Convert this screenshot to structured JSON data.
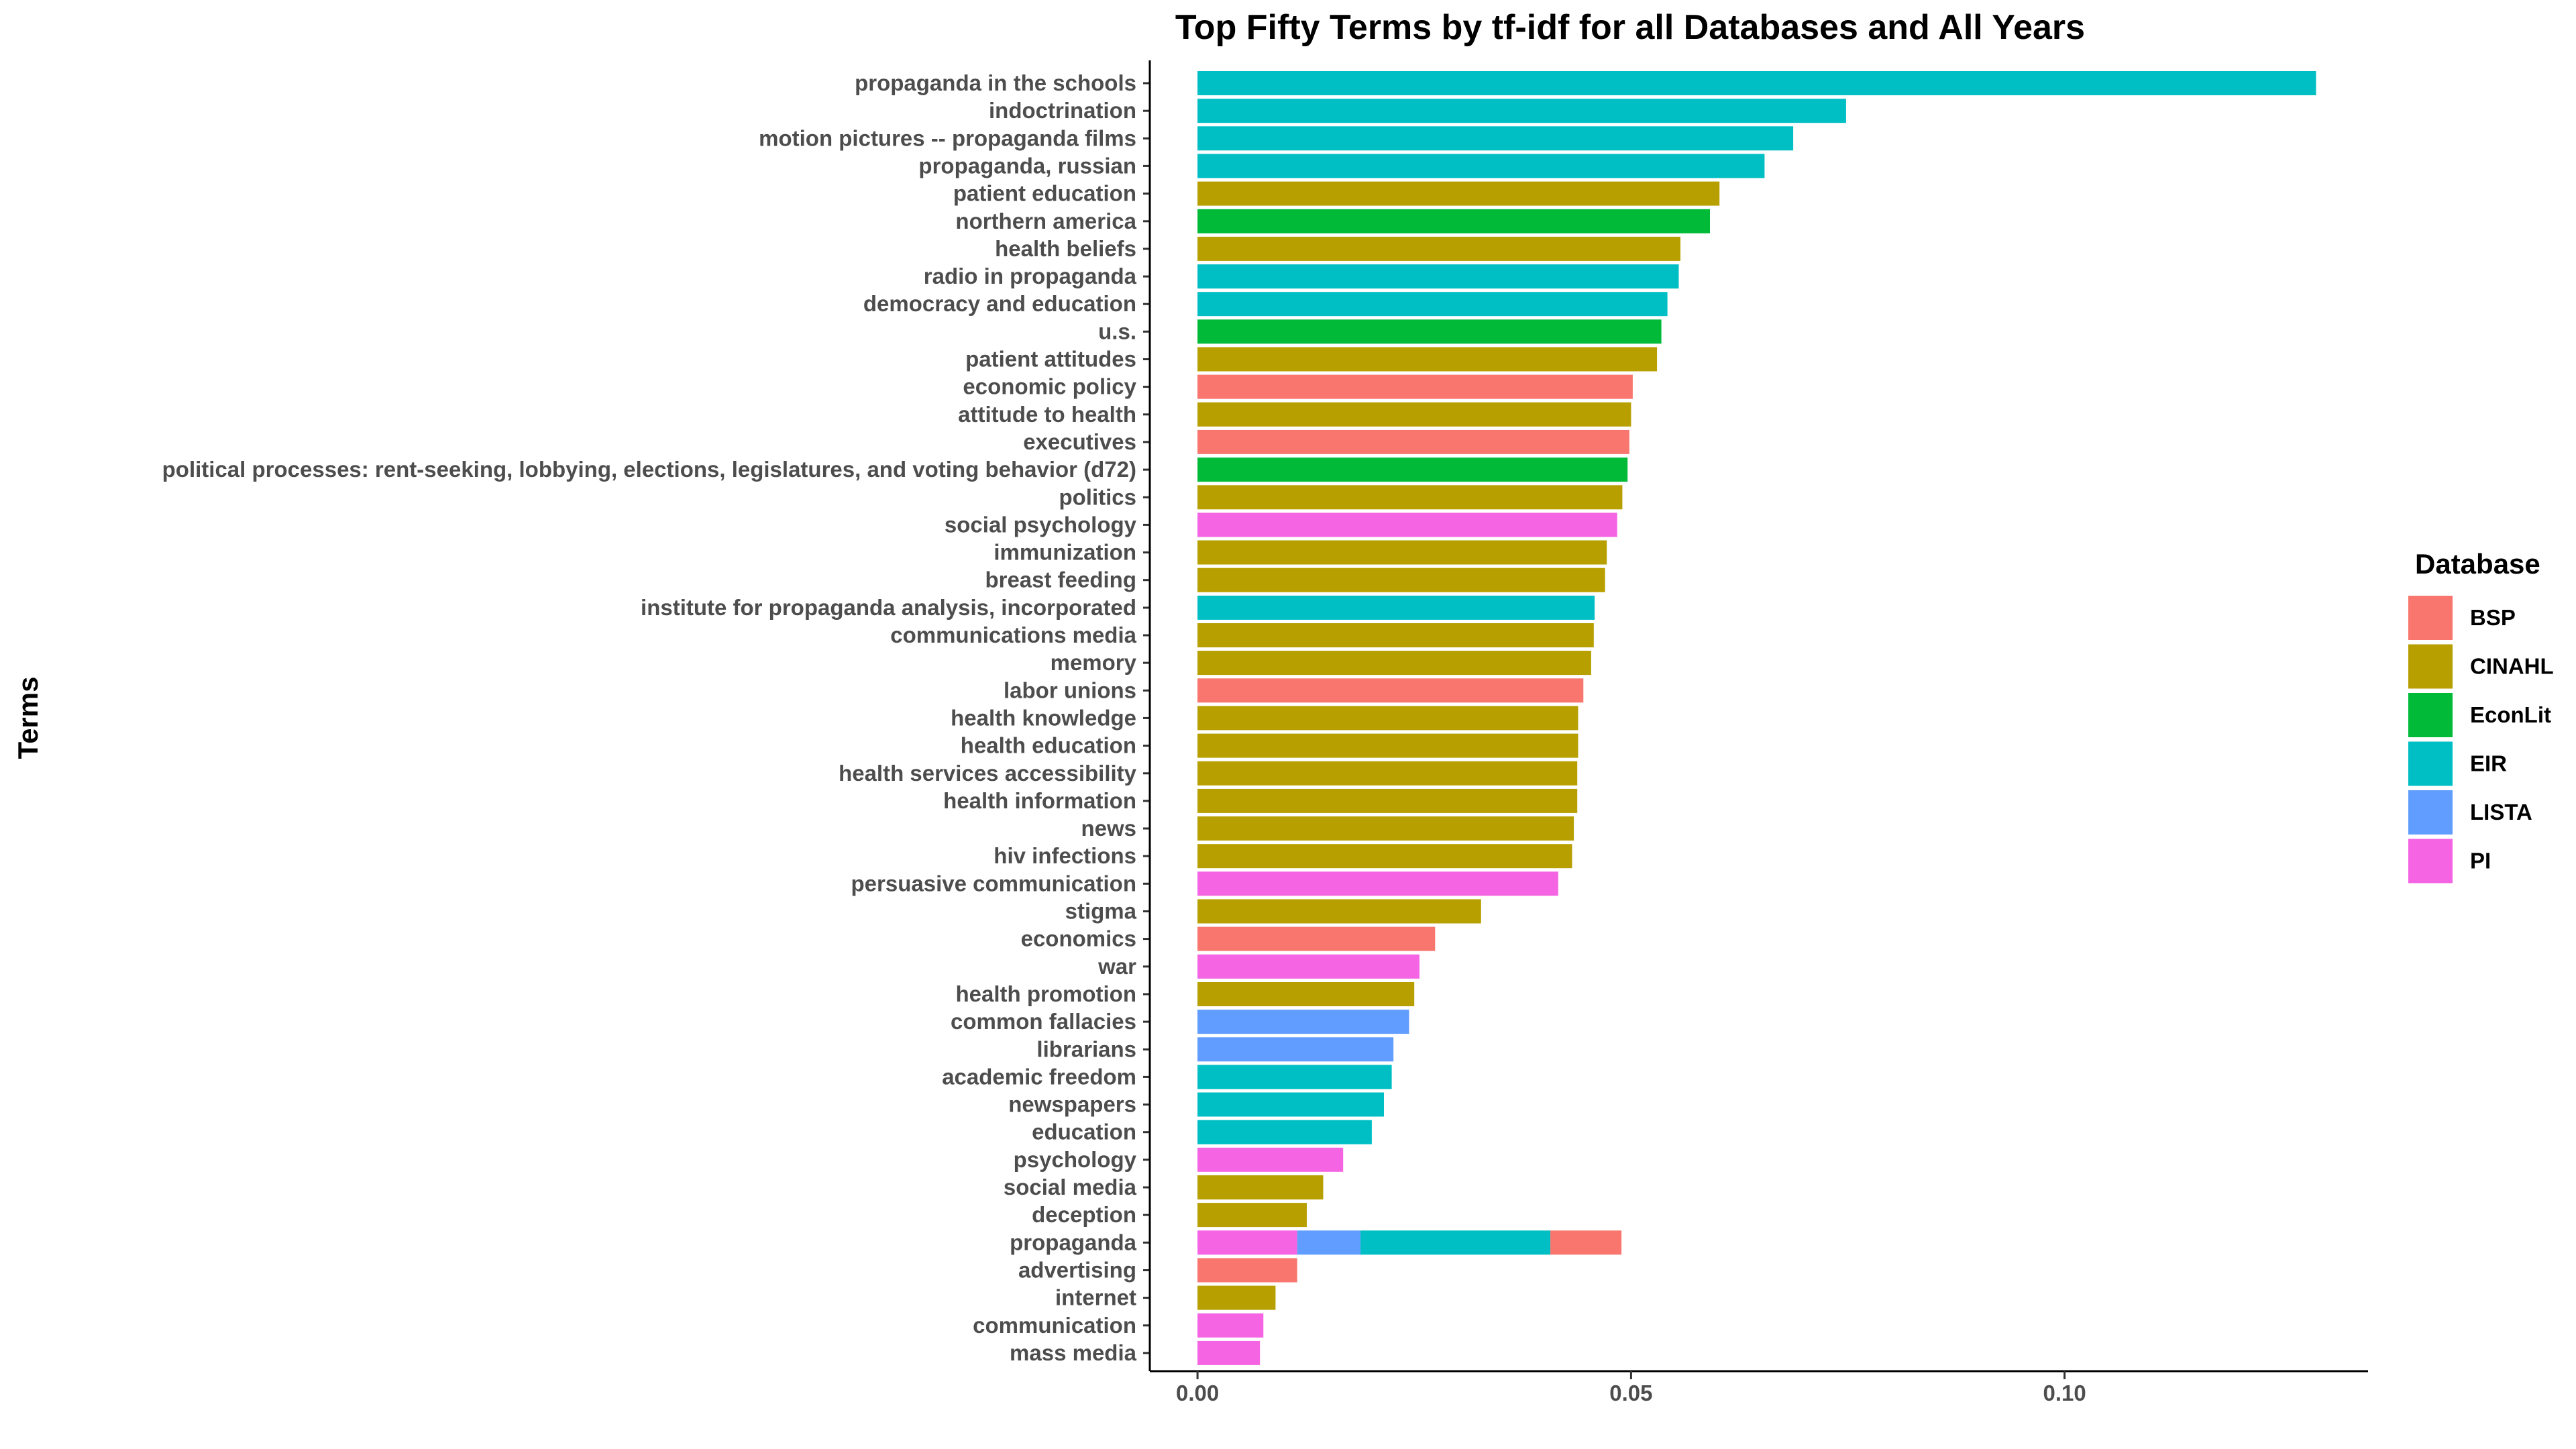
{
  "chart_data": {
    "type": "bar",
    "orientation": "horizontal",
    "stacked": true,
    "title": "Top Fifty Terms by tf-idf for all Databases and All Years",
    "xlabel": "",
    "ylabel": "Terms",
    "xlim": [
      -0.0055,
      0.135
    ],
    "xticks": [
      0.0,
      0.05,
      0.1
    ],
    "xtick_labels": [
      "0.00",
      "0.05",
      "0.10"
    ],
    "grid": false,
    "legend": {
      "title": "Database",
      "position": "right",
      "entries": [
        {
          "name": "BSP",
          "color": "#F8766D"
        },
        {
          "name": "CINAHL",
          "color": "#B79F00"
        },
        {
          "name": "EconLit",
          "color": "#00BA38"
        },
        {
          "name": "EIR",
          "color": "#00BFC4"
        },
        {
          "name": "LISTA",
          "color": "#619CFF"
        },
        {
          "name": "PI",
          "color": "#F564E3"
        }
      ]
    },
    "bars": [
      {
        "term": "propaganda in the schools",
        "segments": [
          {
            "db": "EIR",
            "value": 0.129
          }
        ]
      },
      {
        "term": "indoctrination",
        "segments": [
          {
            "db": "EIR",
            "value": 0.0748
          }
        ]
      },
      {
        "term": "motion pictures -- propaganda films",
        "segments": [
          {
            "db": "EIR",
            "value": 0.0687
          }
        ]
      },
      {
        "term": "propaganda, russian",
        "segments": [
          {
            "db": "EIR",
            "value": 0.0654
          }
        ]
      },
      {
        "term": "patient education",
        "segments": [
          {
            "db": "CINAHL",
            "value": 0.0602
          }
        ]
      },
      {
        "term": "northern america",
        "segments": [
          {
            "db": "EconLit",
            "value": 0.0591
          }
        ]
      },
      {
        "term": "health beliefs",
        "segments": [
          {
            "db": "CINAHL",
            "value": 0.0557
          }
        ]
      },
      {
        "term": "radio in propaganda",
        "segments": [
          {
            "db": "EIR",
            "value": 0.0555
          }
        ]
      },
      {
        "term": "democracy and education",
        "segments": [
          {
            "db": "EIR",
            "value": 0.0542
          }
        ]
      },
      {
        "term": "u.s.",
        "segments": [
          {
            "db": "EconLit",
            "value": 0.0535
          }
        ]
      },
      {
        "term": "patient attitudes",
        "segments": [
          {
            "db": "CINAHL",
            "value": 0.053
          }
        ]
      },
      {
        "term": "economic policy",
        "segments": [
          {
            "db": "BSP",
            "value": 0.0502
          }
        ]
      },
      {
        "term": "attitude to health",
        "segments": [
          {
            "db": "CINAHL",
            "value": 0.05
          }
        ]
      },
      {
        "term": "executives",
        "segments": [
          {
            "db": "BSP",
            "value": 0.0498
          }
        ]
      },
      {
        "term": "political processes: rent-seeking, lobbying, elections, legislatures, and voting behavior (d72)",
        "segments": [
          {
            "db": "EconLit",
            "value": 0.0496
          }
        ]
      },
      {
        "term": "politics",
        "segments": [
          {
            "db": "CINAHL",
            "value": 0.049
          }
        ]
      },
      {
        "term": "social psychology",
        "segments": [
          {
            "db": "PI",
            "value": 0.0484
          }
        ]
      },
      {
        "term": "immunization",
        "segments": [
          {
            "db": "CINAHL",
            "value": 0.0472
          }
        ]
      },
      {
        "term": "breast feeding",
        "segments": [
          {
            "db": "CINAHL",
            "value": 0.047
          }
        ]
      },
      {
        "term": "institute for propaganda analysis, incorporated",
        "segments": [
          {
            "db": "EIR",
            "value": 0.0458
          }
        ]
      },
      {
        "term": "communications media",
        "segments": [
          {
            "db": "CINAHL",
            "value": 0.0457
          }
        ]
      },
      {
        "term": "memory",
        "segments": [
          {
            "db": "CINAHL",
            "value": 0.0454
          }
        ]
      },
      {
        "term": "labor unions",
        "segments": [
          {
            "db": "BSP",
            "value": 0.0445
          }
        ]
      },
      {
        "term": "health knowledge",
        "segments": [
          {
            "db": "CINAHL",
            "value": 0.0439
          }
        ]
      },
      {
        "term": "health education",
        "segments": [
          {
            "db": "CINAHL",
            "value": 0.0439
          }
        ]
      },
      {
        "term": "health services accessibility",
        "segments": [
          {
            "db": "CINAHL",
            "value": 0.0438
          }
        ]
      },
      {
        "term": "health information",
        "segments": [
          {
            "db": "CINAHL",
            "value": 0.0438
          }
        ]
      },
      {
        "term": "news",
        "segments": [
          {
            "db": "CINAHL",
            "value": 0.0434
          }
        ]
      },
      {
        "term": "hiv infections",
        "segments": [
          {
            "db": "CINAHL",
            "value": 0.0432
          }
        ]
      },
      {
        "term": "persuasive communication",
        "segments": [
          {
            "db": "PI",
            "value": 0.0416
          }
        ]
      },
      {
        "term": "stigma",
        "segments": [
          {
            "db": "CINAHL",
            "value": 0.0327
          }
        ]
      },
      {
        "term": "economics",
        "segments": [
          {
            "db": "BSP",
            "value": 0.0274
          }
        ]
      },
      {
        "term": "war",
        "segments": [
          {
            "db": "PI",
            "value": 0.0256
          }
        ]
      },
      {
        "term": "health promotion",
        "segments": [
          {
            "db": "CINAHL",
            "value": 0.025
          }
        ]
      },
      {
        "term": "common fallacies",
        "segments": [
          {
            "db": "LISTA",
            "value": 0.0244
          }
        ]
      },
      {
        "term": "librarians",
        "segments": [
          {
            "db": "LISTA",
            "value": 0.0226
          }
        ]
      },
      {
        "term": "academic freedom",
        "segments": [
          {
            "db": "EIR",
            "value": 0.0224
          }
        ]
      },
      {
        "term": "newspapers",
        "segments": [
          {
            "db": "EIR",
            "value": 0.0215
          }
        ]
      },
      {
        "term": "education",
        "segments": [
          {
            "db": "EIR",
            "value": 0.0201
          }
        ]
      },
      {
        "term": "psychology",
        "segments": [
          {
            "db": "PI",
            "value": 0.0168
          }
        ]
      },
      {
        "term": "social media",
        "segments": [
          {
            "db": "CINAHL",
            "value": 0.0145
          }
        ]
      },
      {
        "term": "deception",
        "segments": [
          {
            "db": "CINAHL",
            "value": 0.0126
          }
        ]
      },
      {
        "term": "propaganda",
        "segments": [
          {
            "db": "PI",
            "value": 0.0115
          },
          {
            "db": "LISTA",
            "value": 0.0073
          },
          {
            "db": "EIR",
            "value": 0.0219
          },
          {
            "db": "BSP",
            "value": 0.0082
          }
        ]
      },
      {
        "term": "advertising",
        "segments": [
          {
            "db": "BSP",
            "value": 0.0115
          }
        ]
      },
      {
        "term": "internet",
        "segments": [
          {
            "db": "CINAHL",
            "value": 0.009
          }
        ]
      },
      {
        "term": "communication",
        "segments": [
          {
            "db": "PI",
            "value": 0.0076
          }
        ]
      },
      {
        "term": "mass media",
        "segments": [
          {
            "db": "PI",
            "value": 0.0072
          }
        ]
      }
    ]
  }
}
